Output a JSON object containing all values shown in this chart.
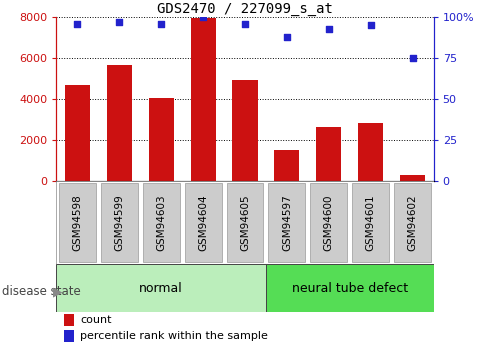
{
  "title": "GDS2470 / 227099_s_at",
  "samples": [
    "GSM94598",
    "GSM94599",
    "GSM94603",
    "GSM94604",
    "GSM94605",
    "GSM94597",
    "GSM94600",
    "GSM94601",
    "GSM94602"
  ],
  "counts": [
    4700,
    5650,
    4050,
    7950,
    4950,
    1500,
    2650,
    2850,
    300
  ],
  "percentiles": [
    96,
    97,
    96,
    100,
    96,
    88,
    93,
    95,
    75
  ],
  "groups": [
    "normal",
    "normal",
    "normal",
    "normal",
    "normal",
    "neural tube defect",
    "neural tube defect",
    "neural tube defect",
    "neural tube defect"
  ],
  "bar_color": "#cc1111",
  "dot_color": "#2222cc",
  "ylim_left": [
    0,
    8000
  ],
  "ylim_right": [
    0,
    100
  ],
  "yticks_left": [
    0,
    2000,
    4000,
    6000,
    8000
  ],
  "yticks_right": [
    0,
    25,
    50,
    75,
    100
  ],
  "normal_color": "#bbeebb",
  "defect_color": "#55dd55",
  "tick_bg_color": "#cccccc",
  "group_label": "disease state",
  "legend_count": "count",
  "legend_percentile": "percentile rank within the sample",
  "fig_width": 4.9,
  "fig_height": 3.45
}
